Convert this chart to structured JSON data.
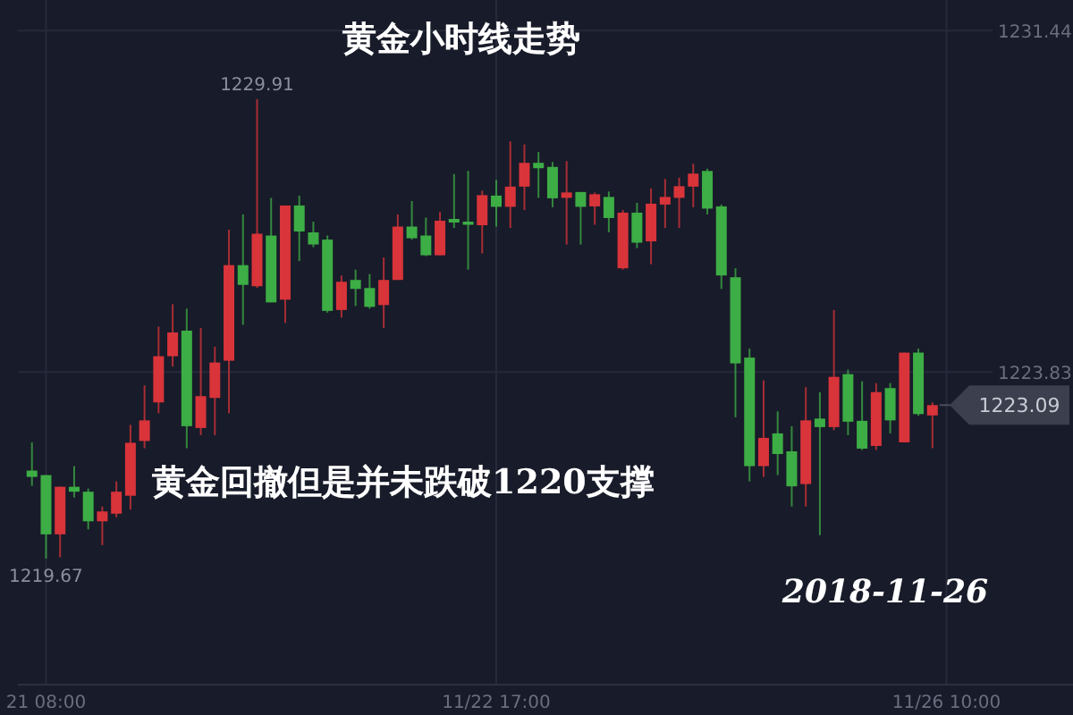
{
  "chart_data": {
    "type": "candlestick",
    "title": "黄金小时线走势",
    "annotations": [
      "黄金回撤但是并未跌破1220支撑",
      "2018-11-26",
      "1229.91",
      "1219.67",
      "1223.09"
    ],
    "categories": [
      null,
      "21 08:00",
      null,
      null,
      null,
      null,
      null,
      null,
      null,
      null,
      null,
      null,
      null,
      null,
      null,
      null,
      null,
      null,
      null,
      null,
      null,
      null,
      null,
      null,
      null,
      null,
      null,
      null,
      null,
      null,
      null,
      null,
      null,
      "11/22 17:00",
      null,
      null,
      null,
      null,
      null,
      null,
      null,
      null,
      null,
      null,
      null,
      null,
      null,
      null,
      null,
      null,
      null,
      null,
      null,
      null,
      null,
      null,
      null,
      null,
      null,
      null,
      null,
      null,
      null,
      null,
      null,
      "11/26 10:00"
    ],
    "ohlc": [
      [
        1221.63,
        1222.26,
        1221.29,
        1221.49
      ],
      [
        1221.53,
        1221.53,
        1219.67,
        1220.21
      ],
      [
        1220.21,
        1221.27,
        1219.7,
        1221.27
      ],
      [
        1221.27,
        1221.73,
        1221.03,
        1221.16
      ],
      [
        1221.16,
        1221.23,
        1220.32,
        1220.5
      ],
      [
        1220.5,
        1220.83,
        1219.97,
        1220.72
      ],
      [
        1220.67,
        1221.39,
        1220.59,
        1221.16
      ],
      [
        1221.07,
        1222.65,
        1220.76,
        1222.25
      ],
      [
        1222.29,
        1223.53,
        1222.13,
        1222.75
      ],
      [
        1223.15,
        1224.84,
        1222.91,
        1224.18
      ],
      [
        1224.18,
        1225.34,
        1223.95,
        1224.71
      ],
      [
        1224.75,
        1225.24,
        1222.13,
        1222.62
      ],
      [
        1222.58,
        1224.81,
        1222.42,
        1223.29
      ],
      [
        1223.25,
        1224.39,
        1222.42,
        1224.04
      ],
      [
        1224.08,
        1227.0,
        1222.91,
        1226.21
      ],
      [
        1226.21,
        1227.34,
        1224.88,
        1225.77
      ],
      [
        1225.74,
        1229.91,
        1225.7,
        1226.91
      ],
      [
        1226.87,
        1227.71,
        1225.38,
        1225.38
      ],
      [
        1225.44,
        1227.54,
        1224.92,
        1227.54
      ],
      [
        1227.54,
        1227.76,
        1226.3,
        1226.96
      ],
      [
        1226.94,
        1227.18,
        1226.61,
        1226.67
      ],
      [
        1226.78,
        1226.87,
        1225.15,
        1225.19
      ],
      [
        1225.21,
        1225.98,
        1225.04,
        1225.84
      ],
      [
        1225.88,
        1226.11,
        1225.3,
        1225.68
      ],
      [
        1225.7,
        1226.01,
        1225.24,
        1225.28
      ],
      [
        1225.32,
        1226.38,
        1224.81,
        1225.88
      ],
      [
        1225.88,
        1227.34,
        1225.88,
        1227.07
      ],
      [
        1227.07,
        1227.64,
        1226.78,
        1226.81
      ],
      [
        1226.87,
        1227.27,
        1226.41,
        1226.43
      ],
      [
        1226.43,
        1227.4,
        1226.43,
        1227.2
      ],
      [
        1227.24,
        1228.24,
        1227.04,
        1227.16
      ],
      [
        1227.18,
        1228.31,
        1226.11,
        1227.11
      ],
      [
        1227.1,
        1227.87,
        1226.47,
        1227.77
      ],
      [
        1227.76,
        1228.11,
        1227.07,
        1227.51
      ],
      [
        1227.51,
        1228.97,
        1227.04,
        1227.96
      ],
      [
        1227.96,
        1228.9,
        1227.44,
        1228.49
      ],
      [
        1228.49,
        1228.73,
        1227.71,
        1228.37
      ],
      [
        1228.4,
        1228.51,
        1227.5,
        1227.7
      ],
      [
        1227.71,
        1228.53,
        1226.67,
        1227.83
      ],
      [
        1227.84,
        1227.84,
        1226.67,
        1227.51
      ],
      [
        1227.52,
        1227.83,
        1227.11,
        1227.79
      ],
      [
        1227.73,
        1227.85,
        1226.94,
        1227.26
      ],
      [
        1226.14,
        1227.44,
        1226.11,
        1227.38
      ],
      [
        1227.38,
        1227.6,
        1226.59,
        1226.71
      ],
      [
        1226.74,
        1227.92,
        1226.23,
        1227.58
      ],
      [
        1227.56,
        1228.13,
        1227.04,
        1227.73
      ],
      [
        1227.71,
        1228.16,
        1227.04,
        1227.97
      ],
      [
        1227.96,
        1228.47,
        1227.5,
        1228.25
      ],
      [
        1228.31,
        1228.36,
        1227.34,
        1227.47
      ],
      [
        1227.52,
        1227.56,
        1225.68,
        1225.98
      ],
      [
        1225.94,
        1226.14,
        1222.82,
        1224.02
      ],
      [
        1224.15,
        1224.35,
        1221.39,
        1221.73
      ],
      [
        1221.73,
        1223.64,
        1221.49,
        1222.36
      ],
      [
        1222.46,
        1222.95,
        1221.53,
        1222.0
      ],
      [
        1222.06,
        1222.62,
        1220.83,
        1221.28
      ],
      [
        1221.33,
        1223.49,
        1220.83,
        1222.75
      ],
      [
        1222.79,
        1223.38,
        1220.19,
        1222.6
      ],
      [
        1222.6,
        1225.21,
        1222.53,
        1223.72
      ],
      [
        1223.78,
        1223.88,
        1222.42,
        1222.72
      ],
      [
        1222.74,
        1223.62,
        1222.09,
        1222.12
      ],
      [
        1222.18,
        1223.58,
        1222.09,
        1223.38
      ],
      [
        1223.47,
        1223.58,
        1222.46,
        1222.75
      ],
      [
        1222.26,
        1224.26,
        1222.26,
        1224.26
      ],
      [
        1224.26,
        1224.35,
        1222.85,
        1222.89
      ],
      [
        1222.86,
        1223.15,
        1222.13,
        1223.09
      ],
      null
    ],
    "colors": [
      "#3dad45",
      "#3dad45",
      "#d8343a",
      "#3dad45",
      "#3dad45",
      "#d8343a",
      "#d8343a",
      "#d8343a",
      "#d8343a",
      "#d8343a",
      "#d8343a",
      "#3dad45",
      "#d8343a",
      "#d8343a",
      "#d8343a",
      "#3dad45",
      "#d8343a",
      "#3dad45",
      "#d8343a",
      "#3dad45",
      "#3dad45",
      "#3dad45",
      "#d8343a",
      "#3dad45",
      "#3dad45",
      "#d8343a",
      "#d8343a",
      "#3dad45",
      "#3dad45",
      "#d8343a",
      "#3dad45",
      "#3dad45",
      "#d8343a",
      "#3dad45",
      "#d8343a",
      "#d8343a",
      "#3dad45",
      "#3dad45",
      "#d8343a",
      "#3dad45",
      "#d8343a",
      "#3dad45",
      "#d8343a",
      "#3dad45",
      "#d8343a",
      "#d8343a",
      "#d8343a",
      "#d8343a",
      "#3dad45",
      "#3dad45",
      "#3dad45",
      "#3dad45",
      "#d8343a",
      "#3dad45",
      "#3dad45",
      "#d8343a",
      "#3dad45",
      "#d8343a",
      "#3dad45",
      "#3dad45",
      "#d8343a",
      "#3dad45",
      "#d8343a",
      "#3dad45",
      "#d8343a",
      null
    ],
    "ylim": [
      1216.86,
      1232.12
    ],
    "yticks": [
      1231.44,
      1223.83
    ],
    "grid": true
  }
}
